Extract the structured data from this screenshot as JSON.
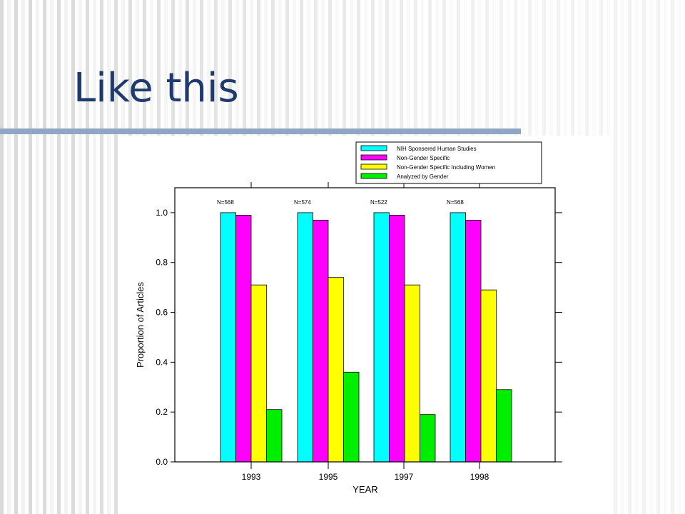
{
  "slide": {
    "title": "Like this",
    "colors": {
      "title": "#1e3a6e",
      "stripe_light": "#f2f2f2",
      "stripe_mid": "#d9d9d9",
      "rule": "#8fa7c4"
    }
  },
  "chart_data": {
    "type": "bar",
    "title": "",
    "xlabel": "YEAR",
    "ylabel": "Proportion of Articles",
    "ylim": [
      0,
      1.1
    ],
    "yticks": [
      "0.0",
      "0.2",
      "0.4",
      "0.6",
      "0.8",
      "1.0"
    ],
    "categories": [
      "1993",
      "1995",
      "1997",
      "1998"
    ],
    "annotations": [
      "N=568",
      "N=574",
      "N=522",
      "N=568"
    ],
    "legend_position": "top-right",
    "grid": false,
    "series": [
      {
        "name": "NIH Sponsered Human Studies",
        "color": "#00ffff",
        "values": [
          1.0,
          1.0,
          1.0,
          1.0
        ]
      },
      {
        "name": "Non-Gender Specific",
        "color": "#ff00ff",
        "values": [
          0.99,
          0.97,
          0.99,
          0.97
        ]
      },
      {
        "name": "Non-Gender Specific Including Women",
        "color": "#ffff00",
        "values": [
          0.71,
          0.74,
          0.71,
          0.69
        ]
      },
      {
        "name": "Analyzed by Gender",
        "color": "#00ee00",
        "values": [
          0.21,
          0.36,
          0.19,
          0.29
        ]
      }
    ]
  }
}
